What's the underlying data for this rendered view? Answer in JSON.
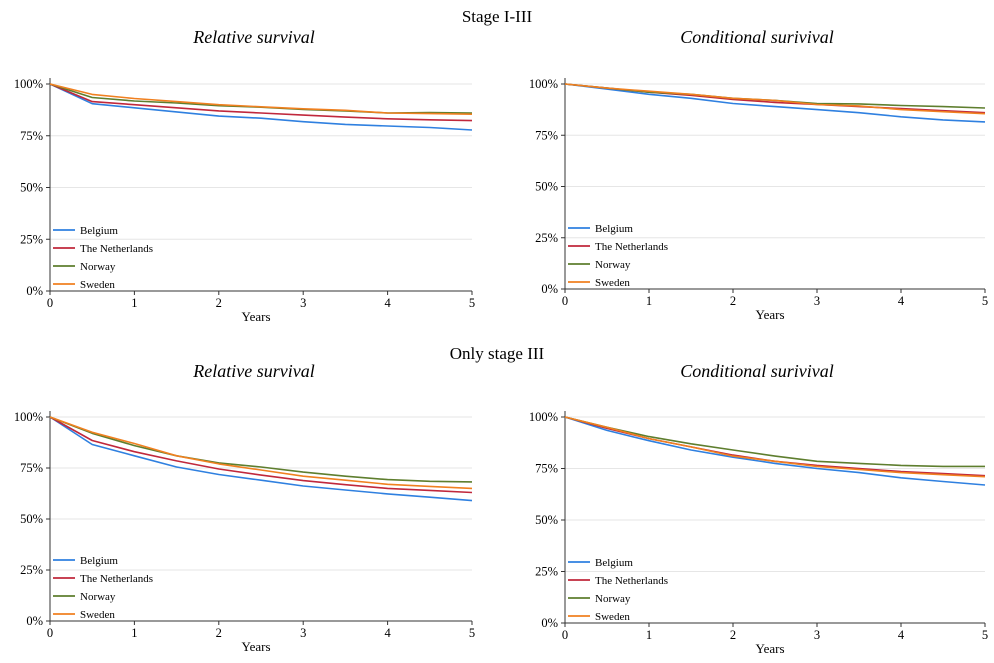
{
  "sections": [
    {
      "title": "Stage I-III",
      "panels": [
        {
          "title": "Relative survival"
        },
        {
          "title": "Conditional surivival"
        }
      ]
    },
    {
      "title": "Only stage III",
      "panels": [
        {
          "title": "Relative survival"
        },
        {
          "title": "Conditional surivival"
        }
      ]
    }
  ],
  "colors": {
    "Belgium": "#2f80e0",
    "The Netherlands": "#c0283c",
    "Norway": "#5e7e2e",
    "Sweden": "#f08020"
  },
  "chart_data": [
    {
      "type": "line",
      "title": "Relative survival",
      "section": "Stage I-III",
      "xlabel": "Years",
      "ylabel": "",
      "xlim": [
        0,
        5
      ],
      "ylim": [
        0,
        100
      ],
      "x_ticks": [
        "0",
        "1",
        "2",
        "3",
        "4",
        "5"
      ],
      "y_ticks": [
        "0%",
        "25%",
        "50%",
        "75%",
        "100%"
      ],
      "grid": true,
      "legend_position": "bottom-left",
      "x": [
        0,
        0.5,
        1,
        1.5,
        2,
        2.5,
        3,
        3.5,
        4,
        4.5,
        5
      ],
      "series": [
        {
          "name": "Belgium",
          "values": [
            100,
            90.5,
            88.5,
            86.5,
            84.5,
            83.5,
            81.8,
            80.5,
            79.7,
            79.0,
            77.8
          ]
        },
        {
          "name": "The Netherlands",
          "values": [
            100,
            91.5,
            90.0,
            88.5,
            87.0,
            86.0,
            85.0,
            84.0,
            83.2,
            82.7,
            82.3
          ]
        },
        {
          "name": "Norway",
          "values": [
            100,
            93.5,
            91.8,
            90.8,
            89.5,
            88.8,
            87.7,
            87.0,
            86.0,
            86.2,
            86.0
          ]
        },
        {
          "name": "Sweden",
          "values": [
            100,
            95.0,
            93.0,
            91.5,
            90.0,
            89.0,
            88.0,
            87.3,
            86.0,
            85.7,
            85.4
          ]
        }
      ]
    },
    {
      "type": "line",
      "title": "Conditional surivival",
      "section": "Stage I-III",
      "xlabel": "Years",
      "ylabel": "",
      "xlim": [
        0,
        5
      ],
      "ylim": [
        0,
        100
      ],
      "x_ticks": [
        "0",
        "1",
        "2",
        "3",
        "4",
        "5"
      ],
      "y_ticks": [
        "0%",
        "25%",
        "50%",
        "75%",
        "100%"
      ],
      "grid": true,
      "legend_position": "bottom-left",
      "x": [
        0,
        0.5,
        1,
        1.5,
        2,
        2.5,
        3,
        3.5,
        4,
        4.5,
        5
      ],
      "series": [
        {
          "name": "Belgium",
          "values": [
            100,
            97.5,
            95.0,
            93.0,
            90.5,
            89.0,
            87.5,
            86.0,
            84.0,
            82.5,
            81.5
          ]
        },
        {
          "name": "The Netherlands",
          "values": [
            100,
            98.0,
            96.0,
            94.5,
            92.5,
            91.0,
            90.0,
            89.0,
            88.0,
            87.0,
            86.0
          ]
        },
        {
          "name": "Norway",
          "values": [
            100,
            98.0,
            96.0,
            95.0,
            93.0,
            92.0,
            90.5,
            90.3,
            89.5,
            89.0,
            88.3
          ]
        },
        {
          "name": "Sweden",
          "values": [
            100,
            98.0,
            96.5,
            95.0,
            93.0,
            92.0,
            90.0,
            89.3,
            87.5,
            86.5,
            85.5
          ]
        }
      ]
    },
    {
      "type": "line",
      "title": "Relative survival",
      "section": "Only stage III",
      "xlabel": "Years",
      "ylabel": "",
      "xlim": [
        0,
        5
      ],
      "ylim": [
        0,
        100
      ],
      "x_ticks": [
        "0",
        "1",
        "2",
        "3",
        "4",
        "5"
      ],
      "y_ticks": [
        "0%",
        "25%",
        "50%",
        "75%",
        "100%"
      ],
      "grid": true,
      "legend_position": "bottom-left",
      "x": [
        0,
        0.5,
        1,
        1.5,
        2,
        2.5,
        3,
        3.5,
        4,
        4.5,
        5
      ],
      "series": [
        {
          "name": "Belgium",
          "values": [
            100,
            86.5,
            81.0,
            75.5,
            71.8,
            69.0,
            66.2,
            64.2,
            62.3,
            60.7,
            59.0
          ]
        },
        {
          "name": "The Netherlands",
          "values": [
            100,
            88.5,
            83.0,
            78.5,
            74.5,
            71.5,
            68.8,
            66.8,
            65.0,
            64.0,
            63.0
          ]
        },
        {
          "name": "Norway",
          "values": [
            100,
            92.0,
            86.0,
            81.0,
            77.5,
            75.5,
            73.0,
            71.0,
            69.3,
            68.5,
            68.2
          ]
        },
        {
          "name": "Sweden",
          "values": [
            100,
            92.5,
            87.0,
            81.0,
            77.0,
            74.0,
            71.0,
            69.0,
            67.0,
            66.0,
            65.0
          ]
        }
      ]
    },
    {
      "type": "line",
      "title": "Conditional surivival",
      "section": "Only stage III",
      "xlabel": "Years",
      "ylabel": "",
      "xlim": [
        0,
        5
      ],
      "ylim": [
        0,
        100
      ],
      "x_ticks": [
        "0",
        "1",
        "2",
        "3",
        "4",
        "5"
      ],
      "y_ticks": [
        "0%",
        "25%",
        "50%",
        "75%",
        "100%"
      ],
      "grid": true,
      "legend_position": "bottom-left",
      "x": [
        0,
        0.5,
        1,
        1.5,
        2,
        2.5,
        3,
        3.5,
        4,
        4.5,
        5
      ],
      "series": [
        {
          "name": "Belgium",
          "values": [
            100,
            93.5,
            88.5,
            84.0,
            80.5,
            77.5,
            75.0,
            73.0,
            70.5,
            68.7,
            67.0
          ]
        },
        {
          "name": "The Netherlands",
          "values": [
            100,
            94.5,
            89.5,
            85.5,
            81.5,
            78.5,
            76.5,
            75.0,
            73.5,
            72.5,
            71.5
          ]
        },
        {
          "name": "Norway",
          "values": [
            100,
            95.0,
            90.5,
            87.0,
            84.0,
            81.0,
            78.5,
            77.5,
            76.5,
            76.0,
            76.0
          ]
        },
        {
          "name": "Sweden",
          "values": [
            100,
            95.0,
            89.5,
            85.5,
            81.0,
            78.5,
            76.0,
            74.5,
            73.0,
            72.0,
            71.0
          ]
        }
      ]
    }
  ]
}
